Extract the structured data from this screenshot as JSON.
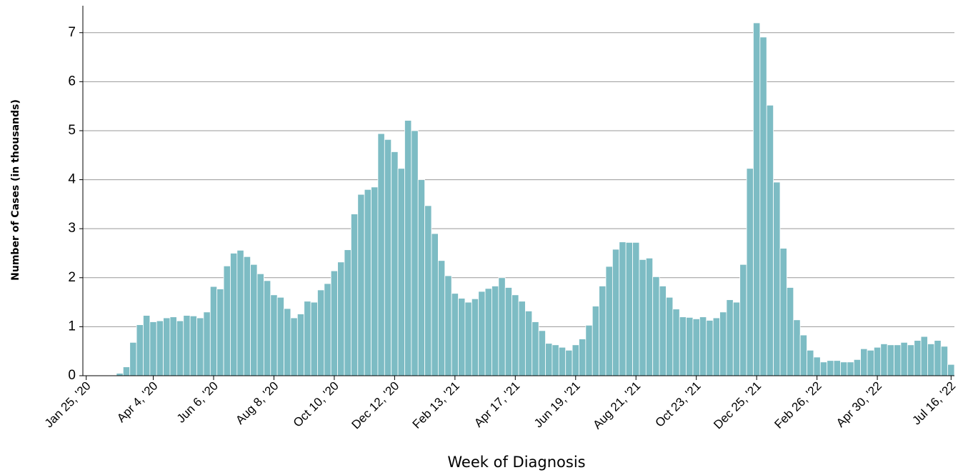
{
  "chart_data": {
    "type": "bar",
    "x_label": "Week of Diagnosis",
    "y_label": "Number of Cases (in thousands)",
    "categories": [
      "Jan 25, '20",
      null,
      null,
      null,
      null,
      null,
      null,
      null,
      null,
      null,
      "Apr 4, '20",
      null,
      null,
      null,
      null,
      null,
      null,
      null,
      null,
      "Jun 6, '20",
      null,
      null,
      null,
      null,
      null,
      null,
      null,
      null,
      "Aug 8, '20",
      null,
      null,
      null,
      null,
      null,
      null,
      null,
      null,
      "Oct 10, '20",
      null,
      null,
      null,
      null,
      null,
      null,
      null,
      null,
      "Dec 12, '20",
      null,
      null,
      null,
      null,
      null,
      null,
      null,
      null,
      "Feb 13, '21",
      null,
      null,
      null,
      null,
      null,
      null,
      null,
      null,
      "Apr 17, '21",
      null,
      null,
      null,
      null,
      null,
      null,
      null,
      null,
      "Jun 19, '21",
      null,
      null,
      null,
      null,
      null,
      null,
      null,
      null,
      "Aug 21, '21",
      null,
      null,
      null,
      null,
      null,
      null,
      null,
      null,
      "Oct 23, '21",
      null,
      null,
      null,
      null,
      null,
      null,
      null,
      null,
      "Dec 25, '21",
      null,
      null,
      null,
      null,
      null,
      null,
      null,
      null,
      "Feb 26, '22",
      null,
      null,
      null,
      null,
      null,
      null,
      null,
      null,
      "Apr 30, '22",
      null,
      null,
      null,
      null,
      null,
      null,
      null,
      null,
      null,
      null,
      "Jul 16, '22"
    ],
    "values": [
      0,
      0,
      0,
      0,
      0,
      0.05,
      0.18,
      0.68,
      1.04,
      1.23,
      1.1,
      1.12,
      1.18,
      1.2,
      1.12,
      1.23,
      1.22,
      1.18,
      1.3,
      1.82,
      1.77,
      2.24,
      2.5,
      2.56,
      2.43,
      2.27,
      2.08,
      1.94,
      1.65,
      1.6,
      1.37,
      1.18,
      1.26,
      1.52,
      1.5,
      1.75,
      1.88,
      2.14,
      2.32,
      2.57,
      3.3,
      3.7,
      3.8,
      3.85,
      4.94,
      4.82,
      4.57,
      4.23,
      5.21,
      5.0,
      4.0,
      3.47,
      2.9,
      2.35,
      2.04,
      1.68,
      1.58,
      1.5,
      1.57,
      1.72,
      1.78,
      1.83,
      2.0,
      1.8,
      1.65,
      1.52,
      1.32,
      1.1,
      0.92,
      0.66,
      0.63,
      0.58,
      0.52,
      0.63,
      0.75,
      1.03,
      1.42,
      1.83,
      2.23,
      2.58,
      2.73,
      2.72,
      2.72,
      2.37,
      2.4,
      2.02,
      1.83,
      1.6,
      1.36,
      1.2,
      1.19,
      1.16,
      1.2,
      1.13,
      1.18,
      1.3,
      1.55,
      1.5,
      2.27,
      4.23,
      7.2,
      6.91,
      5.52,
      3.95,
      2.6,
      1.8,
      1.14,
      0.83,
      0.52,
      0.38,
      0.28,
      0.31,
      0.31,
      0.28,
      0.28,
      0.33,
      0.55,
      0.52,
      0.58,
      0.65,
      0.63,
      0.63,
      0.68,
      0.63,
      0.72,
      0.8,
      0.65,
      0.72,
      0.6,
      0.23
    ],
    "color": "#7dbcc4",
    "ylim": [
      0,
      7.55
    ],
    "yticks": [
      0,
      1,
      2,
      3,
      4,
      5,
      6,
      7
    ],
    "grid": true
  }
}
